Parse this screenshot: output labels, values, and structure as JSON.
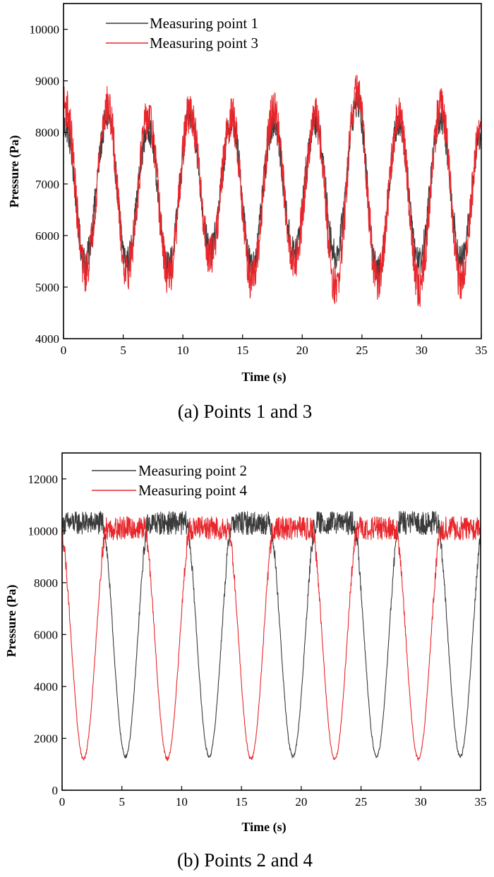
{
  "chart_data": [
    {
      "type": "line",
      "panel": "a",
      "caption": "(a) Points 1 and 3",
      "xlabel": "Time (s)",
      "ylabel": "Pressure (Pa)",
      "xlim": [
        0,
        35
      ],
      "ylim": [
        4000,
        10500
      ],
      "xticks": [
        0,
        5,
        10,
        15,
        20,
        25,
        30,
        35
      ],
      "yticks": [
        4000,
        5000,
        6000,
        7000,
        8000,
        9000,
        10000
      ],
      "legend_position": "top-left",
      "series": [
        {
          "name": "Measuring point 1",
          "color": "#3a3a3a",
          "peaks_t": [
            0.2,
            3.7,
            7.1,
            10.6,
            14.1,
            17.6,
            21.1,
            24.6,
            28.1,
            31.6,
            35.0
          ],
          "peak_values": [
            8100,
            8300,
            8100,
            8300,
            8200,
            8200,
            8200,
            8600,
            8200,
            8300,
            8000
          ],
          "troughs_t": [
            1.8,
            5.3,
            8.8,
            12.3,
            15.8,
            19.3,
            22.8,
            26.3,
            29.8,
            33.3
          ],
          "trough_values": [
            5500,
            5500,
            5400,
            5700,
            5400,
            5700,
            5600,
            5300,
            5500,
            5500
          ],
          "noise_amplitude": 300
        },
        {
          "name": "Measuring point 3",
          "color": "#e8262b",
          "peaks_t": [
            0.2,
            3.7,
            7.1,
            10.6,
            14.1,
            17.6,
            21.1,
            24.6,
            28.1,
            31.6,
            35.0
          ],
          "peak_values": [
            8500,
            8500,
            8300,
            8400,
            8300,
            8400,
            8300,
            8800,
            8300,
            8500,
            8100
          ],
          "troughs_t": [
            1.8,
            5.3,
            8.8,
            12.3,
            15.8,
            19.3,
            22.8,
            26.3,
            29.8,
            33.3
          ],
          "trough_values": [
            5300,
            5300,
            5200,
            5600,
            5100,
            5500,
            5000,
            5100,
            5000,
            5100
          ],
          "noise_amplitude": 400
        }
      ]
    },
    {
      "type": "line",
      "panel": "b",
      "caption": "(b) Points 2 and 4",
      "xlabel": "Time (s)",
      "ylabel": "Pressure (Pa)",
      "xlim": [
        0,
        35
      ],
      "ylim": [
        0,
        13000
      ],
      "xticks": [
        0,
        5,
        10,
        15,
        20,
        25,
        30,
        35
      ],
      "yticks": [
        0,
        2000,
        4000,
        6000,
        8000,
        10000,
        12000
      ],
      "legend_position": "top-left",
      "series": [
        {
          "name": "Measuring point 2",
          "color": "#3a3a3a",
          "plateau_value": 10300,
          "trough_value": 1300,
          "troughs_t": [
            5.3,
            12.3,
            19.3,
            26.3,
            33.3
          ],
          "period": 7.0,
          "noise_amplitude": 450
        },
        {
          "name": "Measuring point 4",
          "color": "#e8262b",
          "plateau_value": 10100,
          "trough_value": 1200,
          "troughs_t": [
            1.8,
            8.8,
            15.8,
            22.8,
            29.8
          ],
          "period": 7.0,
          "noise_amplitude": 450
        }
      ]
    }
  ]
}
